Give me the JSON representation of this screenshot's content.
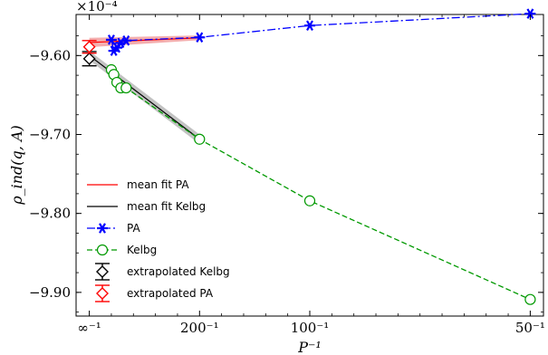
{
  "chart_data": {
    "type": "line",
    "title": "",
    "scale_label": "×10⁻⁴",
    "xlabel": "P⁻¹",
    "ylabel": "ρ_ind(q, A)",
    "xlim": [
      -0.0006,
      0.0206
    ],
    "ylim": [
      -9.93,
      -9.548
    ],
    "yticks": [
      -9.6,
      -9.7,
      -9.8,
      -9.9
    ],
    "ytick_labels": [
      "−9.60",
      "−9.70",
      "−9.80",
      "−9.90"
    ],
    "xticks": [
      0,
      0.005,
      0.01,
      0.02
    ],
    "xtick_labels": [
      "∞⁻¹",
      "200⁻¹",
      "100⁻¹",
      "50⁻¹"
    ],
    "series": [
      {
        "name": "PA",
        "color": "#0000ff",
        "marker": "asterisk",
        "line": "dash-dot",
        "x": [
          0.001,
          0.00111,
          0.00125,
          0.00143,
          0.00167,
          0.005,
          0.01,
          0.02
        ],
        "y": [
          -9.58,
          -9.594,
          -9.59,
          -9.584,
          -9.581,
          -9.577,
          -9.562,
          -9.547
        ]
      },
      {
        "name": "Kelbg",
        "color": "#009900",
        "marker": "open-circle",
        "line": "dashed",
        "x": [
          0.001,
          0.00111,
          0.00125,
          0.00143,
          0.00167,
          0.005,
          0.01,
          0.02
        ],
        "y": [
          -9.618,
          -9.624,
          -9.634,
          -9.641,
          -9.641,
          -9.706,
          -9.784,
          -9.909
        ]
      },
      {
        "name": "mean fit PA",
        "color": "#ff0000",
        "line": "solid",
        "x": [
          0,
          0.005
        ],
        "y": [
          -9.5835,
          -9.5775
        ],
        "band": [
          0.006,
          0.003
        ]
      },
      {
        "name": "mean fit Kelbg",
        "color": "#000000",
        "line": "solid",
        "x": [
          0,
          0.005
        ],
        "y": [
          -9.6,
          -9.706
        ],
        "band": [
          0.006,
          0.006
        ]
      },
      {
        "name": "extrapolated Kelbg",
        "color": "#000000",
        "marker": "open-diamond",
        "x": [
          0
        ],
        "y": [
          -9.604
        ],
        "err": [
          0.009
        ]
      },
      {
        "name": "extrapolated PA",
        "color": "#ff0000",
        "marker": "open-diamond",
        "x": [
          0
        ],
        "y": [
          -9.589
        ],
        "err": [
          0.008
        ]
      }
    ],
    "legend": {
      "placement": "lower-left",
      "entries": [
        "mean fit PA",
        "mean fit Kelbg",
        "PA",
        "Kelbg",
        "extrapolated Kelbg",
        "extrapolated PA"
      ]
    },
    "grid": false
  }
}
